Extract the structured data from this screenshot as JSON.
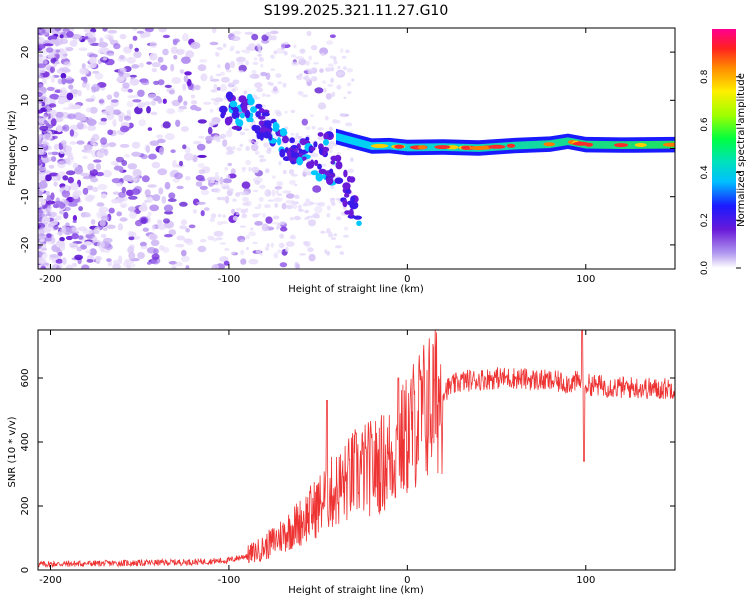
{
  "title": "S199.2025.321.11.27.G10",
  "chart_data": [
    {
      "type": "heatmap",
      "xlabel": "Height of straight line (km)",
      "ylabel": "Frequency (Hz)",
      "xlim": [
        -207,
        150
      ],
      "ylim": [
        -25,
        25
      ],
      "xticks": [
        -200,
        -100,
        0,
        100
      ],
      "yticks": [
        -20,
        -10,
        0,
        10,
        20
      ],
      "colorbar": {
        "label": "Normalized spectral amplitude",
        "range": [
          0,
          1
        ],
        "ticks": [
          0.0,
          0.2,
          0.4,
          0.6,
          0.8
        ],
        "tick_labels": [
          "0.0",
          "0.2",
          "0.4",
          "0.6",
          "0.8"
        ]
      },
      "description": "Scattered noise at heights below about -40 km; a narrow signal ridge near 0 to 2 Hz from about -40 km to 150 km",
      "ridge": [
        [
          -40,
          2.5
        ],
        [
          -30,
          1.5
        ],
        [
          -20,
          0.5
        ],
        [
          -10,
          0.6
        ],
        [
          0,
          0.2
        ],
        [
          20,
          0.3
        ],
        [
          40,
          0.1
        ],
        [
          60,
          0.6
        ],
        [
          80,
          0.9
        ],
        [
          90,
          1.5
        ],
        [
          100,
          0.8
        ],
        [
          120,
          0.7
        ],
        [
          150,
          0.8
        ]
      ],
      "cloud": [
        [
          -100,
          8
        ],
        [
          -95,
          7
        ],
        [
          -90,
          9
        ],
        [
          -85,
          6
        ],
        [
          -80,
          5
        ],
        [
          -75,
          3
        ],
        [
          -70,
          1
        ],
        [
          -65,
          -1
        ],
        [
          -60,
          0
        ],
        [
          -55,
          -1
        ],
        [
          -50,
          -3
        ],
        [
          -45,
          0
        ],
        [
          -40,
          -5
        ],
        [
          -35,
          -8
        ],
        [
          -31,
          -13
        ]
      ]
    },
    {
      "type": "line",
      "xlabel": "Height of straight line (km)",
      "ylabel": "SNR (10 * v/v)",
      "xlim": [
        -207,
        150
      ],
      "ylim": [
        0,
        750
      ],
      "xticks": [
        -200,
        -100,
        0,
        100
      ],
      "yticks": [
        0,
        200,
        400,
        600
      ],
      "series": [
        {
          "name": "SNR",
          "color": "#ee3333",
          "x": [
            -207,
            -180,
            -150,
            -120,
            -100,
            -90,
            -80,
            -70,
            -60,
            -50,
            -45,
            -40,
            -35,
            -30,
            -25,
            -20,
            -15,
            -10,
            -5,
            0,
            5,
            10,
            15,
            20,
            30,
            40,
            50,
            60,
            70,
            80,
            90,
            98,
            100,
            110,
            120,
            130,
            140,
            150
          ],
          "y": [
            18,
            20,
            22,
            25,
            30,
            45,
            70,
            110,
            150,
            200,
            230,
            250,
            270,
            300,
            310,
            320,
            330,
            350,
            380,
            420,
            470,
            500,
            530,
            560,
            590,
            595,
            600,
            600,
            595,
            590,
            585,
            590,
            580,
            575,
            570,
            570,
            565,
            570
          ]
        }
      ],
      "annotations": [
        {
          "x": -45,
          "y": 530,
          "text": "spike"
        },
        {
          "x": -5,
          "y": 600,
          "text": "spike"
        },
        {
          "x": 98,
          "y": 750,
          "text": "spike"
        },
        {
          "x": 99,
          "y": 340,
          "text": "dip"
        }
      ]
    }
  ]
}
